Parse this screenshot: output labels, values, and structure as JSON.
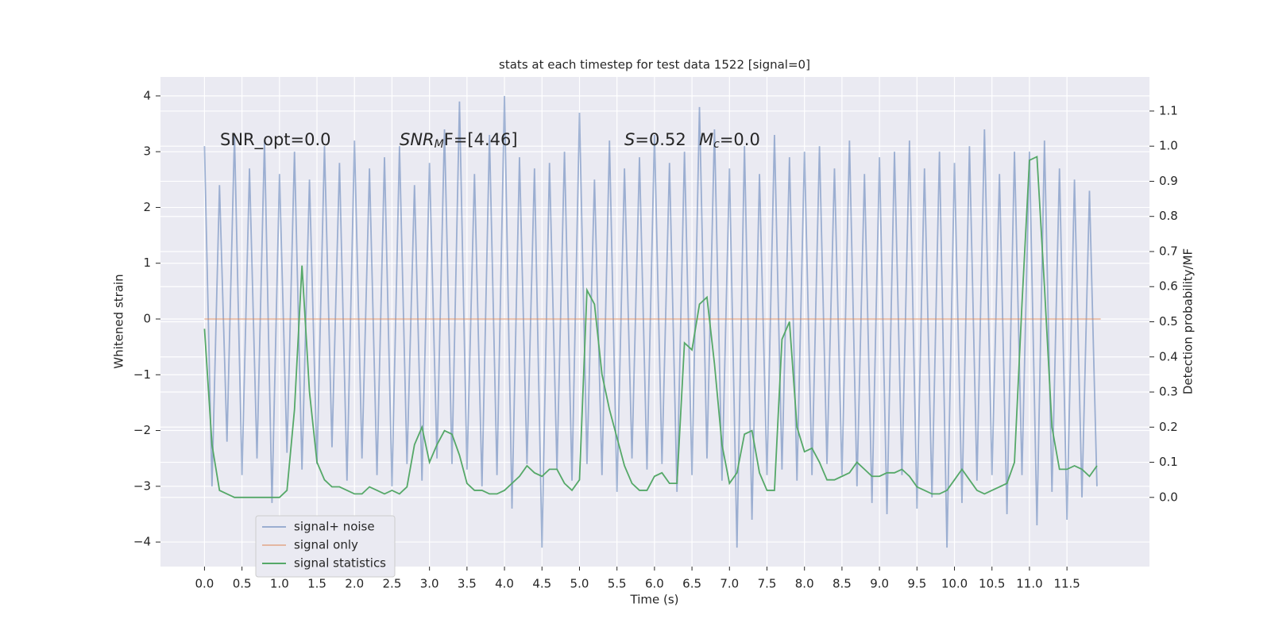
{
  "chart_data": {
    "type": "line",
    "title": "stats at each timestep for test data 1522 [signal=0]",
    "xlabel": "Time (s)",
    "ylabel": "Whitened strain",
    "y2label": "Detection probability/MF",
    "annotations": [
      [
        "SNR_opt=0.0"
      ],
      [
        "SNR",
        "M",
        "F=[4.46]"
      ],
      [
        "S",
        "=0.52"
      ],
      [
        "M",
        "c",
        "=0.0"
      ]
    ],
    "xlim": [
      -0.587,
      12.6
    ],
    "ylim": [
      -4.44,
      4.34
    ],
    "y2lim": [
      -0.197,
      1.197
    ],
    "xticks": [
      {
        "value": 0,
        "label": "0.0"
      },
      {
        "value": 0.5,
        "label": "0.5"
      },
      {
        "value": 1,
        "label": "1.0"
      },
      {
        "value": 1.5,
        "label": "1.5"
      },
      {
        "value": 2,
        "label": "2.0"
      },
      {
        "value": 2.5,
        "label": "2.5"
      },
      {
        "value": 3,
        "label": "3.0"
      },
      {
        "value": 3.5,
        "label": "3.5"
      },
      {
        "value": 4,
        "label": "4.0"
      },
      {
        "value": 4.5,
        "label": "4.5"
      },
      {
        "value": 5,
        "label": "5.0"
      },
      {
        "value": 5.5,
        "label": "5.5"
      },
      {
        "value": 6,
        "label": "6.0"
      },
      {
        "value": 6.5,
        "label": "6.5"
      },
      {
        "value": 7,
        "label": "7.0"
      },
      {
        "value": 7.5,
        "label": "7.5"
      },
      {
        "value": 8,
        "label": "8.0"
      },
      {
        "value": 8.5,
        "label": "8.5"
      },
      {
        "value": 9,
        "label": "9.0"
      },
      {
        "value": 9.5,
        "label": "9.5"
      },
      {
        "value": 10,
        "label": "10.0"
      },
      {
        "value": 10.5,
        "label": "10.5"
      },
      {
        "value": 11,
        "label": "11.0"
      },
      {
        "value": 11.5,
        "label": "11.5"
      }
    ],
    "yticks": [
      {
        "value": -4,
        "label": "−4"
      },
      {
        "value": -3,
        "label": "−3"
      },
      {
        "value": -2,
        "label": "−2"
      },
      {
        "value": -1,
        "label": "−1"
      },
      0,
      1,
      2,
      3,
      4
    ],
    "y2ticks": [
      {
        "value": 0,
        "label": "0.0"
      },
      {
        "value": 0.1,
        "label": "0.1"
      },
      {
        "value": 0.2,
        "label": "0.2"
      },
      {
        "value": 0.3,
        "label": "0.3"
      },
      {
        "value": 0.4,
        "label": "0.4"
      },
      {
        "value": 0.5,
        "label": "0.5"
      },
      {
        "value": 0.6,
        "label": "0.6"
      },
      {
        "value": 0.7,
        "label": "0.7"
      },
      {
        "value": 0.8,
        "label": "0.8"
      },
      {
        "value": 0.9,
        "label": "0.9"
      },
      {
        "value": 1,
        "label": "1.0"
      },
      {
        "value": 1.1,
        "label": "1.1"
      }
    ],
    "grid": true,
    "legend": "lower left",
    "series": [
      {
        "name": "signal+ noise",
        "color": "#4c72b0",
        "opacity": 0.5,
        "axis": "y",
        "x": [
          0,
          0.1,
          0.2,
          0.3,
          0.4,
          0.5,
          0.6,
          0.7,
          0.8,
          0.9,
          1,
          1.1,
          1.2,
          1.3,
          1.4,
          1.5,
          1.6,
          1.7,
          1.8,
          1.9,
          2,
          2.1,
          2.2,
          2.3,
          2.4,
          2.5,
          2.6,
          2.7,
          2.8,
          2.9,
          3,
          3.1,
          3.2,
          3.3,
          3.4,
          3.5,
          3.6,
          3.7,
          3.8,
          3.9,
          4,
          4.1,
          4.2,
          4.3,
          4.4,
          4.5,
          4.6,
          4.7,
          4.8,
          4.9,
          5,
          5.1,
          5.2,
          5.3,
          5.4,
          5.5,
          5.6,
          5.7,
          5.8,
          5.9,
          6,
          6.1,
          6.2,
          6.3,
          6.4,
          6.5,
          6.6,
          6.7,
          6.8,
          6.9,
          7,
          7.1,
          7.2,
          7.3,
          7.4,
          7.5,
          7.6,
          7.7,
          7.8,
          7.9,
          8,
          8.1,
          8.2,
          8.3,
          8.4,
          8.5,
          8.6,
          8.7,
          8.8,
          8.9,
          9,
          9.1,
          9.2,
          9.3,
          9.4,
          9.5,
          9.6,
          9.7,
          9.8,
          9.9,
          10,
          10.1,
          10.2,
          10.3,
          10.4,
          10.5,
          10.6,
          10.7,
          10.8,
          10.9,
          11,
          11.1,
          11.2,
          11.3,
          11.4,
          11.5,
          11.6,
          11.7,
          11.8,
          11.9
        ],
        "values": [
          3.1,
          -3.0,
          2.4,
          -2.2,
          3.3,
          -2.8,
          2.7,
          -2.5,
          3.2,
          -3.3,
          2.6,
          -2.4,
          3.0,
          -2.7,
          2.5,
          -2.6,
          3.1,
          -2.3,
          2.8,
          -2.9,
          3.2,
          -2.5,
          2.7,
          -2.8,
          2.9,
          -3.0,
          3.1,
          -2.6,
          2.4,
          -2.9,
          2.8,
          -2.5,
          3.4,
          -2.6,
          3.9,
          -2.7,
          2.6,
          -3.0,
          3.3,
          -2.8,
          4.0,
          -3.4,
          2.9,
          -2.6,
          2.7,
          -4.1,
          2.8,
          -2.7,
          3.0,
          -2.9,
          3.7,
          -2.6,
          2.5,
          -2.8,
          3.2,
          -3.1,
          2.7,
          -2.5,
          2.9,
          -2.7,
          3.3,
          -2.6,
          2.8,
          -3.1,
          3.0,
          -2.8,
          3.8,
          -2.5,
          3.4,
          -2.9,
          2.7,
          -4.1,
          3.1,
          -3.6,
          2.6,
          -2.8,
          3.3,
          -2.7,
          2.9,
          -2.9,
          3.0,
          -2.8,
          3.1,
          -2.6,
          2.7,
          -2.8,
          3.2,
          -3.0,
          2.6,
          -3.3,
          2.9,
          -3.5,
          3.0,
          -2.8,
          3.2,
          -3.4,
          2.7,
          -3.2,
          3.0,
          -4.1,
          2.8,
          -3.3,
          3.1,
          -2.9,
          3.4,
          -2.8,
          2.6,
          -3.5,
          3.0,
          -2.8,
          3.0,
          -3.7,
          3.2,
          -3.1,
          2.7,
          -3.6,
          2.5,
          -3.2,
          2.3,
          -3.0
        ]
      },
      {
        "name": "signal only",
        "color": "#dd8452",
        "opacity": 0.5,
        "axis": "y",
        "x": [
          0,
          11.95
        ],
        "values": [
          0,
          0
        ]
      },
      {
        "name": "signal statistics",
        "color": "#55a868",
        "opacity": 1,
        "axis": "y2",
        "x": [
          0,
          0.1,
          0.2,
          0.3,
          0.4,
          0.5,
          0.6,
          0.7,
          0.8,
          0.9,
          1,
          1.1,
          1.2,
          1.3,
          1.4,
          1.5,
          1.6,
          1.7,
          1.8,
          1.9,
          2,
          2.1,
          2.2,
          2.3,
          2.4,
          2.5,
          2.6,
          2.7,
          2.8,
          2.9,
          3,
          3.1,
          3.2,
          3.3,
          3.4,
          3.5,
          3.6,
          3.7,
          3.8,
          3.9,
          4,
          4.1,
          4.2,
          4.3,
          4.4,
          4.5,
          4.6,
          4.7,
          4.8,
          4.9,
          5,
          5.1,
          5.2,
          5.3,
          5.4,
          5.5,
          5.6,
          5.7,
          5.8,
          5.9,
          6,
          6.1,
          6.2,
          6.3,
          6.4,
          6.5,
          6.6,
          6.7,
          6.8,
          6.9,
          7,
          7.1,
          7.2,
          7.3,
          7.4,
          7.5,
          7.6,
          7.7,
          7.8,
          7.9,
          8,
          8.1,
          8.2,
          8.3,
          8.4,
          8.5,
          8.6,
          8.7,
          8.8,
          8.9,
          9,
          9.1,
          9.2,
          9.3,
          9.4,
          9.5,
          9.6,
          9.7,
          9.8,
          9.9,
          10,
          10.1,
          10.2,
          10.3,
          10.4,
          10.5,
          10.6,
          10.7,
          10.8,
          10.9,
          11,
          11.1,
          11.2,
          11.3,
          11.4,
          11.5,
          11.6,
          11.7,
          11.8,
          11.9
        ],
        "values": [
          0.48,
          0.15,
          0.02,
          0.01,
          0.0,
          0.0,
          0.0,
          0.0,
          0.0,
          0.0,
          0.0,
          0.02,
          0.25,
          0.66,
          0.3,
          0.1,
          0.05,
          0.03,
          0.03,
          0.02,
          0.01,
          0.01,
          0.03,
          0.02,
          0.01,
          0.02,
          0.01,
          0.03,
          0.15,
          0.2,
          0.1,
          0.15,
          0.19,
          0.18,
          0.12,
          0.04,
          0.02,
          0.02,
          0.01,
          0.01,
          0.02,
          0.04,
          0.06,
          0.09,
          0.07,
          0.06,
          0.08,
          0.08,
          0.04,
          0.02,
          0.05,
          0.59,
          0.55,
          0.35,
          0.25,
          0.17,
          0.09,
          0.04,
          0.02,
          0.02,
          0.06,
          0.07,
          0.04,
          0.04,
          0.44,
          0.42,
          0.55,
          0.57,
          0.38,
          0.15,
          0.04,
          0.07,
          0.18,
          0.19,
          0.07,
          0.02,
          0.02,
          0.45,
          0.5,
          0.2,
          0.13,
          0.14,
          0.1,
          0.05,
          0.05,
          0.06,
          0.07,
          0.1,
          0.08,
          0.06,
          0.06,
          0.07,
          0.07,
          0.08,
          0.06,
          0.03,
          0.02,
          0.01,
          0.01,
          0.02,
          0.05,
          0.08,
          0.05,
          0.02,
          0.01,
          0.02,
          0.03,
          0.04,
          0.1,
          0.55,
          0.96,
          0.97,
          0.6,
          0.2,
          0.08,
          0.08,
          0.09,
          0.08,
          0.06,
          0.09
        ]
      }
    ]
  }
}
